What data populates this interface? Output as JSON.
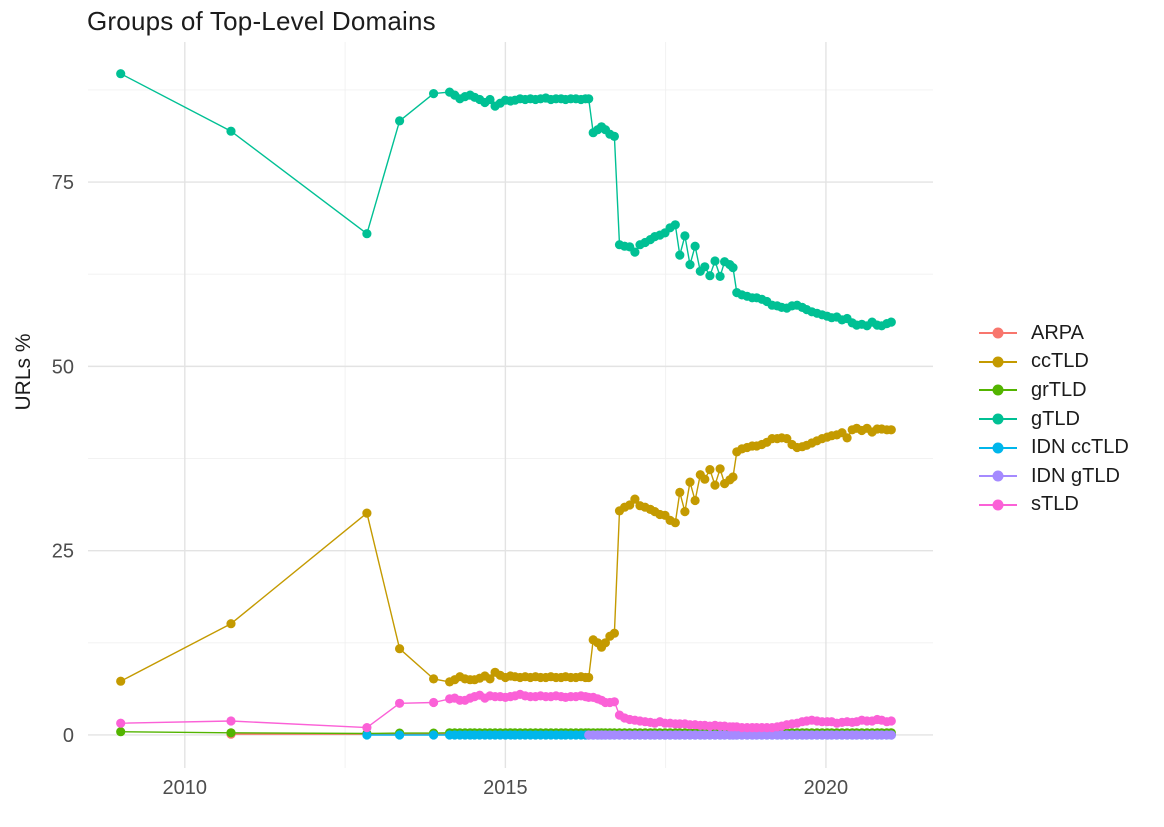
{
  "chart_data": {
    "type": "line",
    "title": "Groups of Top-Level Domains",
    "xlabel": "",
    "ylabel": "URLs %",
    "legend_position": "right",
    "grid": true,
    "background": "#FFFFFF",
    "axis_text_color": "#4d4d4d",
    "gridline_major_color": "#e3e3e3",
    "gridline_minor_color": "#f0f0f0",
    "x_domain": [
      2008.49,
      2021.67
    ],
    "y_domain": [
      -4.48,
      94.0
    ],
    "x_ticks": [
      2010,
      2015,
      2020
    ],
    "x_tick_labels": [
      "2010",
      "2015",
      "2020"
    ],
    "y_ticks": [
      0,
      25,
      50,
      75
    ],
    "y_tick_labels": [
      "0",
      "25",
      "50",
      "75"
    ],
    "x_minor_gridlines": [
      2012.5,
      2017.5
    ],
    "y_minor_gridlines": [
      12.5,
      37.5,
      62.5,
      87.5
    ],
    "point_radius": 4.6,
    "line_width": 1.4,
    "x_grid": [
      2009.0,
      2010.72,
      2012.84,
      2013.35,
      2013.88,
      2014.13,
      2014.21,
      2014.29,
      2014.37,
      2014.45,
      2014.52,
      2014.6,
      2014.68,
      2014.76,
      2014.84,
      2014.92,
      2015.0,
      2015.08,
      2015.15,
      2015.23,
      2015.31,
      2015.39,
      2015.47,
      2015.55,
      2015.63,
      2015.71,
      2015.79,
      2015.87,
      2015.94,
      2016.02,
      2016.1,
      2016.18,
      2016.25,
      2016.3,
      2016.37,
      2016.44,
      2016.5,
      2016.56,
      2016.63,
      2016.7,
      2016.78,
      2016.86,
      2016.94,
      2017.02,
      2017.1,
      2017.18,
      2017.26,
      2017.33,
      2017.41,
      2017.49,
      2017.57,
      2017.65,
      2017.72,
      2017.8,
      2017.88,
      2017.96,
      2018.04,
      2018.11,
      2018.19,
      2018.27,
      2018.35,
      2018.42,
      2018.5,
      2018.55,
      2018.61,
      2018.69,
      2018.77,
      2018.85,
      2018.92,
      2019.0,
      2019.08,
      2019.16,
      2019.24,
      2019.31,
      2019.39,
      2019.47,
      2019.55,
      2019.63,
      2019.7,
      2019.78,
      2019.86,
      2019.94,
      2020.02,
      2020.09,
      2020.17,
      2020.25,
      2020.33,
      2020.41,
      2020.48,
      2020.56,
      2020.64,
      2020.72,
      2020.8,
      2020.87,
      2020.95,
      2021.02
    ],
    "series": [
      {
        "name": "ARPA",
        "color": "#F8766D",
        "constant": {
          "from": 2010.72,
          "to": 2021.02,
          "value": 0.1
        }
      },
      {
        "name": "ccTLD",
        "color": "#C49A00",
        "values": [
          7.3,
          15.1,
          30.1,
          11.7,
          7.6,
          7.2,
          7.5,
          7.9,
          7.6,
          7.5,
          7.5,
          7.7,
          8.0,
          7.6,
          8.5,
          8.1,
          7.8,
          8.0,
          7.9,
          7.8,
          7.9,
          7.8,
          7.9,
          7.8,
          7.8,
          7.9,
          7.8,
          7.8,
          7.9,
          7.8,
          7.8,
          7.9,
          7.8,
          7.8,
          12.9,
          12.5,
          11.9,
          12.5,
          13.4,
          13.8,
          30.4,
          30.9,
          31.2,
          32.0,
          31.1,
          30.9,
          30.6,
          30.3,
          29.9,
          29.8,
          29.1,
          28.8,
          32.9,
          30.3,
          34.3,
          31.8,
          35.3,
          34.7,
          36.0,
          33.9,
          36.1,
          34.1,
          34.6,
          35.0,
          38.4,
          38.8,
          39.0,
          39.2,
          39.2,
          39.4,
          39.7,
          40.2,
          40.2,
          40.3,
          40.2,
          39.4,
          39.0,
          39.1,
          39.3,
          39.6,
          39.9,
          40.2,
          40.4,
          40.6,
          40.7,
          41.0,
          40.3,
          41.4,
          41.6,
          41.3,
          41.6,
          41.1,
          41.5,
          41.5,
          41.4,
          41.4
        ]
      },
      {
        "name": "grTLD",
        "color": "#53B400",
        "points": [
          [
            2009.0,
            0.45
          ],
          [
            2010.72,
            0.3
          ],
          [
            2012.84,
            0.2
          ],
          [
            2013.35,
            0.25
          ],
          [
            2013.88,
            0.25
          ]
        ],
        "constant": {
          "from": 2014.13,
          "to": 2021.02,
          "value": 0.3
        }
      },
      {
        "name": "gTLD",
        "color": "#00C094",
        "values": [
          89.7,
          81.9,
          68.0,
          83.3,
          87.0,
          87.2,
          86.8,
          86.3,
          86.6,
          86.8,
          86.5,
          86.2,
          85.8,
          86.2,
          85.3,
          85.7,
          86.1,
          86.0,
          86.1,
          86.3,
          86.2,
          86.3,
          86.2,
          86.3,
          86.4,
          86.2,
          86.3,
          86.3,
          86.2,
          86.3,
          86.3,
          86.2,
          86.3,
          86.3,
          81.7,
          82.1,
          82.5,
          82.1,
          81.5,
          81.2,
          66.5,
          66.3,
          66.2,
          65.5,
          66.5,
          66.8,
          67.2,
          67.6,
          67.8,
          68.1,
          68.8,
          69.2,
          65.1,
          67.7,
          63.8,
          66.3,
          62.9,
          63.5,
          62.3,
          64.3,
          62.2,
          64.2,
          63.8,
          63.4,
          60.0,
          59.7,
          59.5,
          59.3,
          59.3,
          59.1,
          58.8,
          58.3,
          58.2,
          58.0,
          57.9,
          58.2,
          58.3,
          58.0,
          57.7,
          57.4,
          57.2,
          57.0,
          56.8,
          56.6,
          56.7,
          56.3,
          56.5,
          55.9,
          55.6,
          55.7,
          55.5,
          56.0,
          55.6,
          55.5,
          55.8,
          56.0
        ]
      },
      {
        "name": "IDN ccTLD",
        "color": "#00B6EB",
        "constant": {
          "from": 2012.84,
          "to": 2021.02,
          "value": 0.0
        }
      },
      {
        "name": "IDN gTLD",
        "color": "#A58AFF",
        "constant": {
          "from": 2016.3,
          "to": 2021.02,
          "value": 0.0
        }
      },
      {
        "name": "sTLD",
        "color": "#FB61D7",
        "values": [
          1.6,
          1.9,
          1.0,
          4.3,
          4.4,
          4.9,
          5.0,
          4.7,
          4.7,
          5.0,
          5.2,
          5.4,
          5.0,
          5.3,
          5.2,
          5.2,
          5.1,
          5.2,
          5.3,
          5.5,
          5.3,
          5.2,
          5.2,
          5.3,
          5.2,
          5.2,
          5.3,
          5.2,
          5.1,
          5.2,
          5.2,
          5.3,
          5.2,
          5.1,
          5.1,
          4.9,
          4.7,
          4.4,
          4.4,
          4.5,
          2.7,
          2.3,
          2.1,
          2.0,
          1.9,
          1.8,
          1.7,
          1.6,
          1.8,
          1.6,
          1.6,
          1.5,
          1.5,
          1.5,
          1.4,
          1.4,
          1.3,
          1.3,
          1.2,
          1.3,
          1.2,
          1.2,
          1.1,
          1.1,
          1.1,
          1.0,
          1.0,
          1.0,
          1.0,
          1.0,
          1.0,
          1.0,
          1.1,
          1.2,
          1.4,
          1.5,
          1.6,
          1.8,
          1.9,
          2.0,
          1.9,
          1.8,
          1.8,
          1.8,
          1.6,
          1.7,
          1.8,
          1.7,
          1.8,
          2.0,
          1.9,
          1.9,
          2.1,
          2.0,
          1.8,
          1.9
        ]
      }
    ]
  }
}
